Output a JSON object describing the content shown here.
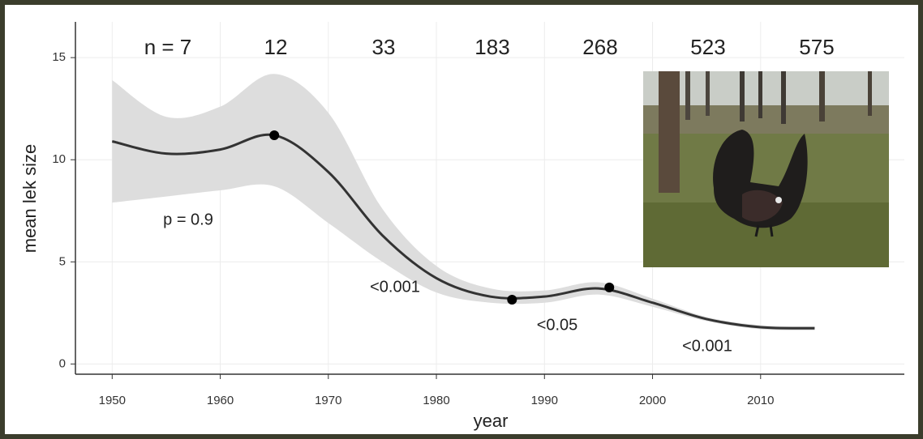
{
  "chart_data": {
    "type": "line",
    "x_axis_label": "year",
    "y_axis_label": "mean lek size",
    "x": [
      1950,
      1955,
      1960,
      1965,
      1970,
      1975,
      1980,
      1985,
      1990,
      1995,
      2000,
      2005,
      2010,
      2015
    ],
    "series": [
      {
        "color": "#333333",
        "values": [
          10.9,
          10.3,
          10.5,
          11.2,
          9.4,
          6.3,
          4.2,
          3.3,
          3.3,
          3.7,
          3.0,
          2.2,
          1.8,
          1.75
        ]
      }
    ],
    "band": {
      "color": "#dddddd",
      "upper": [
        13.9,
        12.1,
        12.6,
        14.2,
        12.3,
        7.6,
        4.8,
        3.7,
        3.6,
        4.0,
        3.2,
        2.3,
        1.9,
        1.85
      ],
      "lower": [
        7.9,
        8.2,
        8.5,
        8.7,
        6.9,
        5.0,
        3.5,
        3.0,
        3.0,
        3.4,
        2.8,
        2.1,
        1.7,
        1.65
      ]
    },
    "points": {
      "color": "#000000",
      "x": [
        1965,
        1987,
        1996
      ],
      "values": [
        11.2,
        3.15,
        3.75
      ]
    },
    "sample_sizes": [
      "n = 7",
      "12",
      "33",
      "183",
      "268",
      "523",
      "575"
    ],
    "annotations": [
      "p = 0.9",
      "<0.001",
      "<0.05",
      "<0.001"
    ],
    "xlim": [
      1946.6,
      2023.3
    ],
    "xticks": [
      1950,
      1960,
      1970,
      1980,
      1990,
      2000,
      2010
    ],
    "ylim": [
      -0.5,
      16.75
    ],
    "yticks": [
      0,
      5,
      10,
      15
    ],
    "grid": true
  }
}
